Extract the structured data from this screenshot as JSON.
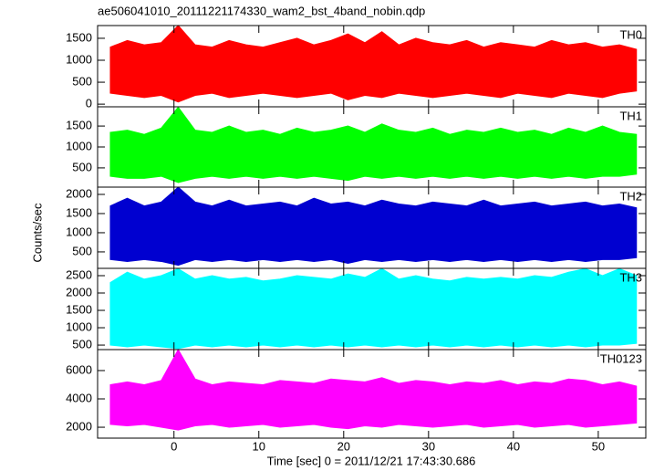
{
  "chart_data": {
    "type": "band",
    "title": "ae506041010_20111221174330_wam2_bst_4band_nobin.qdp",
    "xlabel": "Time [sec] 0 = 2011/12/21 17:43:30.686",
    "ylabel": "Counts/sec",
    "xlim": [
      -9,
      55.6
    ],
    "xticks": [
      0,
      10,
      20,
      30,
      40,
      50
    ],
    "x": [
      -7.5,
      -5.5,
      -3.5,
      -1.5,
      0.5,
      2.5,
      4.5,
      6.5,
      8.5,
      10.5,
      12.5,
      14.5,
      16.5,
      18.5,
      20.5,
      22.5,
      24.5,
      26.5,
      28.5,
      30.5,
      32.5,
      34.5,
      36.5,
      38.5,
      40.5,
      42.5,
      44.5,
      46.5,
      48.5,
      50.5,
      52.5,
      54.5
    ],
    "panels": [
      {
        "label": "TH0",
        "color": "#ff0000",
        "ylim": [
          -60,
          1790
        ],
        "yticks": [
          0,
          500,
          1000,
          1500
        ],
        "high": [
          1300,
          1450,
          1350,
          1400,
          1790,
          1350,
          1300,
          1450,
          1350,
          1300,
          1400,
          1500,
          1350,
          1450,
          1600,
          1400,
          1650,
          1350,
          1500,
          1400,
          1350,
          1450,
          1300,
          1400,
          1350,
          1300,
          1450,
          1350,
          1400,
          1300,
          1350,
          1250
        ],
        "low": [
          250,
          200,
          150,
          200,
          50,
          200,
          250,
          150,
          200,
          250,
          200,
          150,
          200,
          250,
          100,
          200,
          150,
          250,
          200,
          150,
          200,
          250,
          200,
          150,
          250,
          200,
          150,
          250,
          200,
          150,
          250,
          300
        ]
      },
      {
        "label": "TH1",
        "color": "#00ff00",
        "ylim": [
          40,
          1960
        ],
        "yticks": [
          500,
          1000,
          1500
        ],
        "high": [
          1350,
          1400,
          1300,
          1450,
          1950,
          1400,
          1350,
          1500,
          1350,
          1400,
          1300,
          1450,
          1350,
          1400,
          1500,
          1350,
          1550,
          1400,
          1350,
          1450,
          1300,
          1400,
          1350,
          1450,
          1350,
          1400,
          1300,
          1450,
          1350,
          1500,
          1350,
          1300
        ],
        "low": [
          300,
          250,
          250,
          300,
          150,
          250,
          300,
          250,
          300,
          250,
          300,
          250,
          300,
          250,
          200,
          300,
          250,
          300,
          250,
          300,
          250,
          300,
          250,
          300,
          250,
          300,
          250,
          300,
          250,
          300,
          300,
          350
        ]
      },
      {
        "label": "TH2",
        "color": "#0000d0",
        "ylim": [
          70,
          2190
        ],
        "yticks": [
          500,
          1000,
          1500,
          2000
        ],
        "high": [
          1700,
          1900,
          1700,
          1800,
          2190,
          1800,
          1700,
          1850,
          1700,
          1750,
          1800,
          1700,
          1900,
          1750,
          1800,
          1700,
          1850,
          1750,
          1700,
          1800,
          1750,
          1700,
          1850,
          1700,
          1750,
          1800,
          1700,
          1750,
          1800,
          1700,
          1750,
          1650
        ],
        "low": [
          300,
          250,
          300,
          250,
          150,
          300,
          250,
          300,
          250,
          300,
          250,
          300,
          250,
          300,
          200,
          300,
          250,
          300,
          250,
          300,
          250,
          300,
          250,
          300,
          250,
          300,
          250,
          300,
          250,
          300,
          300,
          350
        ]
      },
      {
        "label": "TH3",
        "color": "#00ffff",
        "ylim": [
          370,
          2710
        ],
        "yticks": [
          500,
          1000,
          1500,
          2000,
          2500
        ],
        "high": [
          2300,
          2600,
          2400,
          2500,
          2700,
          2400,
          2500,
          2400,
          2450,
          2350,
          2400,
          2500,
          2450,
          2400,
          2550,
          2450,
          2700,
          2400,
          2500,
          2400,
          2350,
          2450,
          2400,
          2450,
          2400,
          2500,
          2450,
          2600,
          2700,
          2500,
          2700,
          2500
        ],
        "low": [
          500,
          450,
          500,
          450,
          400,
          500,
          450,
          500,
          450,
          500,
          450,
          500,
          450,
          500,
          450,
          500,
          450,
          500,
          450,
          500,
          450,
          500,
          450,
          500,
          450,
          500,
          450,
          500,
          450,
          500,
          500,
          550
        ]
      },
      {
        "label": "TH0123",
        "color": "#ff00ff",
        "ylim": [
          1230,
          7480
        ],
        "yticks": [
          2000,
          4000,
          6000
        ],
        "high": [
          5000,
          5200,
          5000,
          5300,
          7480,
          5400,
          5000,
          5200,
          5100,
          5000,
          5300,
          5200,
          5100,
          5400,
          5300,
          5200,
          5500,
          5100,
          5300,
          5200,
          5000,
          5200,
          5100,
          5300,
          5000,
          5200,
          5100,
          5400,
          5300,
          5000,
          5200,
          4900
        ],
        "low": [
          2200,
          2100,
          2200,
          2000,
          1800,
          2100,
          2200,
          2000,
          2100,
          2200,
          2000,
          2100,
          2200,
          2000,
          1900,
          2100,
          2000,
          2200,
          2100,
          2000,
          2100,
          2200,
          2000,
          2100,
          2200,
          2000,
          2100,
          2200,
          2000,
          2100,
          2200,
          2300
        ]
      }
    ]
  }
}
